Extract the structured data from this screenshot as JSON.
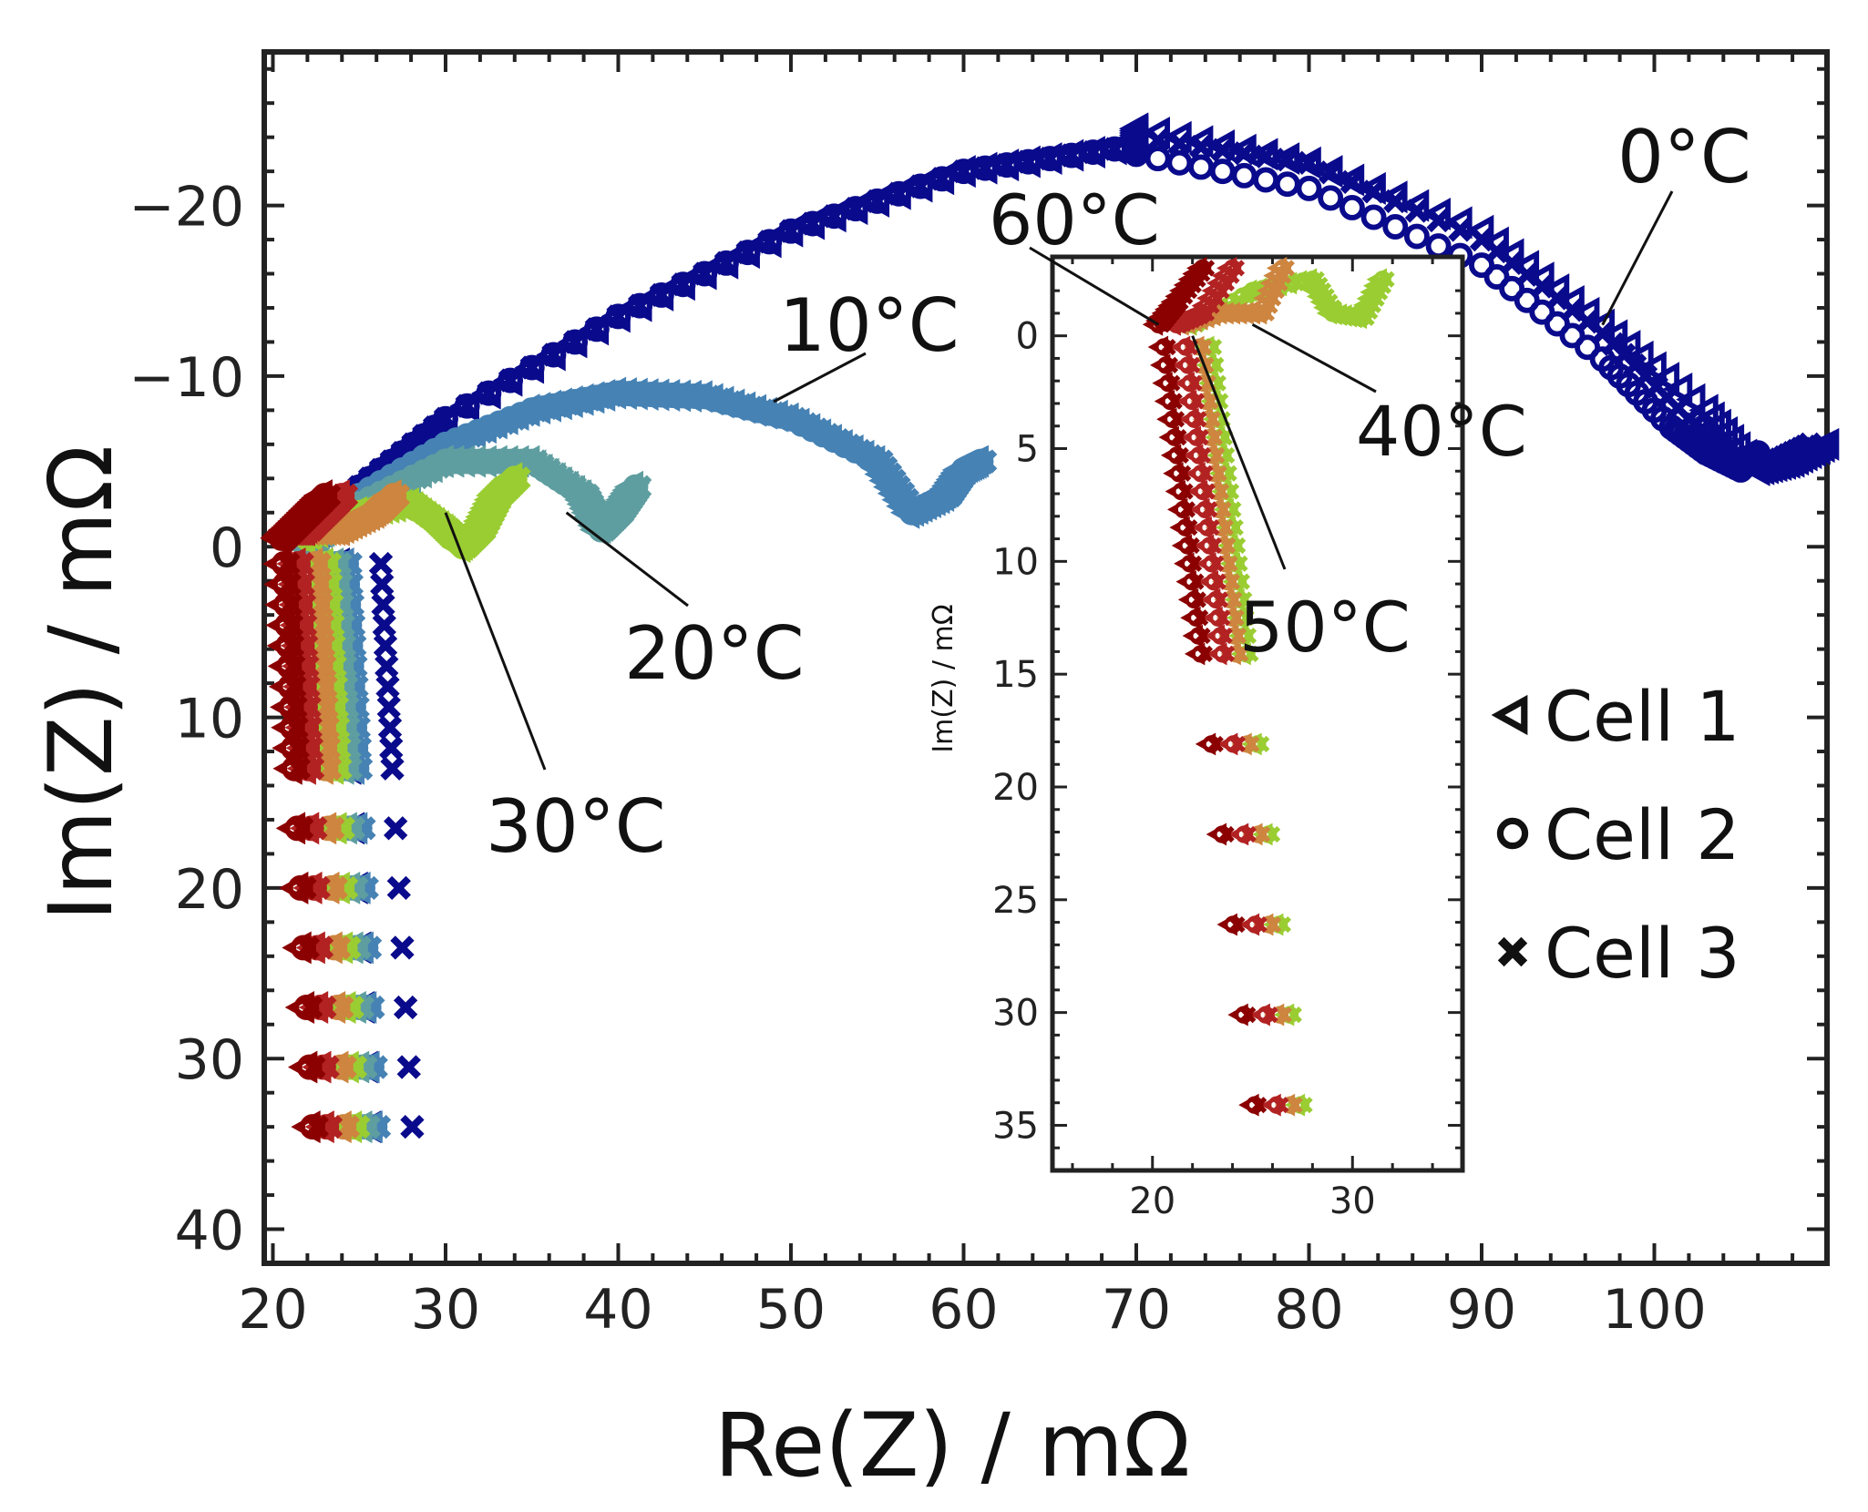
{
  "chart_data": {
    "type": "scatter",
    "xlabel": "Re(Z) / mΩ",
    "ylabel": "Im(Z) / mΩ",
    "xlim": [
      19.5,
      110
    ],
    "ylim": [
      -29,
      42
    ],
    "y_inverted": true,
    "x_ticks": [
      20,
      30,
      40,
      50,
      60,
      70,
      80,
      90,
      100
    ],
    "y_ticks": [
      -20,
      -10,
      0,
      10,
      20,
      30,
      40
    ],
    "x_tick_labels": [
      "20",
      "30",
      "40",
      "50",
      "60",
      "70",
      "80",
      "90",
      "100"
    ],
    "y_tick_labels": [
      "−20",
      "−10",
      "0",
      "10",
      "20",
      "30",
      "40"
    ],
    "grid": false,
    "temperatures": [
      {
        "label": "0°C",
        "color": "#0a0a8c"
      },
      {
        "label": "10°C",
        "color": "#4682b4"
      },
      {
        "label": "20°C",
        "color": "#5f9ea0"
      },
      {
        "label": "30°C",
        "color": "#9acd32"
      },
      {
        "label": "40°C",
        "color": "#cd853f"
      },
      {
        "label": "50°C",
        "color": "#b22222"
      },
      {
        "label": "60°C",
        "color": "#8b0000"
      }
    ],
    "legend": {
      "placement": "right",
      "entries": [
        {
          "marker": "triangle-left",
          "label": "Cell 1"
        },
        {
          "marker": "circle",
          "label": "Cell 2"
        },
        {
          "marker": "x",
          "label": "Cell 3"
        }
      ]
    },
    "series": [
      {
        "temp": "0°C",
        "cell": "Cell 1",
        "points": [
          [
            70,
            -24.5
          ],
          [
            80,
            -22.5
          ],
          [
            90,
            -18.5
          ],
          [
            97,
            -13
          ],
          [
            103,
            -8
          ],
          [
            106,
            -4.5
          ],
          [
            108,
            -5
          ],
          [
            110,
            -6
          ]
        ]
      },
      {
        "temp": "0°C",
        "cell": "Cell 2",
        "points": [
          [
            70,
            -23
          ],
          [
            80,
            -21
          ],
          [
            90,
            -16.5
          ],
          [
            97,
            -11
          ],
          [
            101,
            -7
          ],
          [
            103,
            -5.5
          ],
          [
            105,
            -4.5
          ],
          [
            106,
            -5.5
          ]
        ]
      },
      {
        "temp": "0°C",
        "cell": "Cell 3",
        "points": [
          [
            70,
            -24
          ],
          [
            80,
            -22.5
          ],
          [
            90,
            -18
          ],
          [
            97,
            -12.5
          ],
          [
            102,
            -7.5
          ],
          [
            105,
            -5
          ],
          [
            107,
            -5
          ],
          [
            109,
            -6
          ]
        ]
      },
      {
        "temp": "10°C",
        "cell": "all",
        "points": [
          [
            35,
            -8
          ],
          [
            40,
            -9
          ],
          [
            45,
            -8.8
          ],
          [
            50,
            -7.5
          ],
          [
            55,
            -5
          ],
          [
            57,
            -2
          ],
          [
            59,
            -3
          ],
          [
            60,
            -4.5
          ],
          [
            61,
            -5
          ]
        ]
      },
      {
        "temp": "20°C",
        "cell": "all",
        "points": [
          [
            30,
            -5
          ],
          [
            35,
            -5
          ],
          [
            38,
            -3
          ],
          [
            39,
            -1
          ],
          [
            40,
            -2
          ],
          [
            41,
            -3.5
          ]
        ]
      },
      {
        "temp": "30°C",
        "cell": "all",
        "points": [
          [
            28,
            -2.5
          ],
          [
            30,
            -1
          ],
          [
            31,
            0
          ],
          [
            32,
            -1
          ],
          [
            33,
            -3
          ],
          [
            34,
            -4
          ]
        ]
      },
      {
        "temp": "40°C",
        "cell": "all",
        "points": [
          [
            24,
            -1
          ],
          [
            26,
            -2
          ],
          [
            27,
            -3
          ]
        ]
      },
      {
        "temp": "50°C",
        "cell": "all",
        "points": [
          [
            22,
            -1
          ],
          [
            23,
            -2
          ],
          [
            24,
            -3
          ]
        ]
      },
      {
        "temp": "60°C",
        "cell": "all",
        "points": [
          [
            21,
            -1
          ],
          [
            22,
            -2
          ],
          [
            23,
            -3
          ]
        ]
      }
    ],
    "annotations": [
      {
        "text": "0°C",
        "target": [
          97,
          -13
        ]
      },
      {
        "text": "10°C",
        "target": [
          49,
          -8.5
        ]
      },
      {
        "text": "20°C",
        "target": [
          37,
          -2
        ]
      },
      {
        "text": "30°C",
        "target": [
          30,
          -2
        ]
      }
    ],
    "inset": {
      "ylabel": "Im(Z) / mΩ",
      "xlim": [
        15,
        35.5
      ],
      "ylim": [
        -3.5,
        37
      ],
      "y_inverted": true,
      "x_ticks": [
        20,
        30
      ],
      "y_ticks": [
        0,
        5,
        10,
        15,
        20,
        25,
        30,
        35
      ],
      "x_tick_labels": [
        "20",
        "30"
      ],
      "y_tick_labels": [
        "0",
        "5",
        "10",
        "15",
        "20",
        "25",
        "30",
        "35"
      ],
      "annotations": [
        {
          "text": "60°C",
          "target": [
            20.3,
            -0.5
          ]
        },
        {
          "text": "40°C",
          "target": [
            25,
            -0.5
          ]
        },
        {
          "text": "50°C",
          "target": [
            22,
            0
          ]
        }
      ]
    }
  }
}
